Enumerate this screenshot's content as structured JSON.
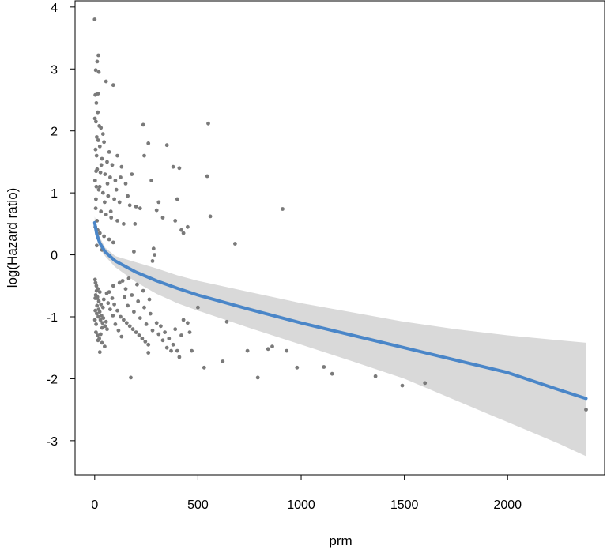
{
  "chart_data": {
    "type": "scatter",
    "title": "",
    "xlabel": "prm",
    "ylabel": "log(Hazard ratio)",
    "xlim": [
      -95,
      2470
    ],
    "ylim": [
      -3.55,
      4.1
    ],
    "xticks": [
      0,
      500,
      1000,
      1500,
      2000
    ],
    "yticks": [
      -3,
      -2,
      -1,
      0,
      1,
      2,
      3,
      4
    ],
    "grid": false,
    "colors": {
      "points": "#7a7a7a",
      "fit_line": "#4a86c8",
      "confidence_band": "#d9d9d9"
    },
    "fit_line": {
      "x": [
        0,
        10,
        25,
        50,
        100,
        200,
        300,
        400,
        500,
        750,
        1000,
        1250,
        1500,
        1750,
        2000,
        2250,
        2380
      ],
      "y": [
        0.52,
        0.33,
        0.19,
        0.05,
        -0.1,
        -0.28,
        -0.42,
        -0.54,
        -0.65,
        -0.88,
        -1.1,
        -1.3,
        -1.5,
        -1.7,
        -1.9,
        -2.18,
        -2.32
      ]
    },
    "confidence_band": {
      "x": [
        0,
        25,
        50,
        100,
        200,
        300,
        400,
        500,
        750,
        1000,
        1250,
        1500,
        1750,
        2000,
        2250,
        2380
      ],
      "upper": [
        0.62,
        0.28,
        0.12,
        -0.02,
        -0.12,
        -0.22,
        -0.33,
        -0.42,
        -0.6,
        -0.78,
        -0.93,
        -1.08,
        -1.2,
        -1.3,
        -1.38,
        -1.42
      ],
      "lower": [
        0.42,
        0.1,
        -0.02,
        -0.2,
        -0.44,
        -0.63,
        -0.78,
        -0.9,
        -1.18,
        -1.45,
        -1.72,
        -2.0,
        -2.35,
        -2.7,
        -3.05,
        -3.25
      ]
    },
    "points": [
      [
        0,
        3.8
      ],
      [
        18,
        3.22
      ],
      [
        12,
        3.12
      ],
      [
        5,
        2.98
      ],
      [
        20,
        2.95
      ],
      [
        55,
        2.8
      ],
      [
        90,
        2.74
      ],
      [
        3,
        2.58
      ],
      [
        8,
        2.45
      ],
      [
        15,
        2.3
      ],
      [
        6,
        2.15
      ],
      [
        22,
        2.08
      ],
      [
        30,
        2.05
      ],
      [
        40,
        1.95
      ],
      [
        10,
        1.9
      ],
      [
        45,
        1.82
      ],
      [
        25,
        1.75
      ],
      [
        4,
        1.7
      ],
      [
        70,
        1.66
      ],
      [
        110,
        1.6
      ],
      [
        35,
        1.55
      ],
      [
        60,
        1.5
      ],
      [
        85,
        1.45
      ],
      [
        130,
        1.42
      ],
      [
        12,
        1.38
      ],
      [
        28,
        1.33
      ],
      [
        50,
        1.3
      ],
      [
        75,
        1.25
      ],
      [
        100,
        1.2
      ],
      [
        150,
        1.15
      ],
      [
        8,
        1.1
      ],
      [
        20,
        1.05
      ],
      [
        40,
        1.0
      ],
      [
        65,
        0.95
      ],
      [
        95,
        0.9
      ],
      [
        120,
        0.85
      ],
      [
        170,
        0.8
      ],
      [
        200,
        0.78
      ],
      [
        5,
        0.75
      ],
      [
        30,
        0.7
      ],
      [
        55,
        0.65
      ],
      [
        80,
        0.6
      ],
      [
        110,
        0.55
      ],
      [
        140,
        0.5
      ],
      [
        3,
        0.45
      ],
      [
        14,
        0.4
      ],
      [
        25,
        0.35
      ],
      [
        45,
        0.3
      ],
      [
        70,
        0.25
      ],
      [
        90,
        0.2
      ],
      [
        10,
        0.15
      ],
      [
        35,
        0.08
      ],
      [
        2,
        1.2
      ],
      [
        6,
        0.9
      ],
      [
        9,
        1.6
      ],
      [
        16,
        2.6
      ],
      [
        1,
        2.2
      ],
      [
        7,
        1.35
      ],
      [
        11,
        0.55
      ],
      [
        17,
        1.85
      ],
      [
        24,
        1.1
      ],
      [
        32,
        1.45
      ],
      [
        48,
        0.85
      ],
      [
        62,
        1.15
      ],
      [
        78,
        0.7
      ],
      [
        105,
        1.05
      ],
      [
        125,
        1.25
      ],
      [
        160,
        0.95
      ],
      [
        180,
        1.3
      ],
      [
        220,
        0.75
      ],
      [
        235,
        2.1
      ],
      [
        260,
        1.8
      ],
      [
        300,
        0.72
      ],
      [
        310,
        0.85
      ],
      [
        330,
        0.6
      ],
      [
        350,
        1.77
      ],
      [
        380,
        1.42
      ],
      [
        400,
        0.9
      ],
      [
        410,
        1.4
      ],
      [
        420,
        0.4
      ],
      [
        430,
        0.35
      ],
      [
        240,
        1.6
      ],
      [
        275,
        1.2
      ],
      [
        195,
        0.5
      ],
      [
        285,
        0.1
      ],
      [
        290,
        0.0
      ],
      [
        390,
        0.55
      ],
      [
        450,
        0.45
      ],
      [
        550,
        2.12
      ],
      [
        545,
        1.27
      ],
      [
        560,
        0.62
      ],
      [
        680,
        0.18
      ],
      [
        910,
        0.74
      ],
      [
        190,
        0.05
      ],
      [
        280,
        -0.1
      ],
      [
        2,
        -0.4
      ],
      [
        8,
        -0.5
      ],
      [
        15,
        -0.55
      ],
      [
        25,
        -0.6
      ],
      [
        5,
        -0.65
      ],
      [
        12,
        -0.7
      ],
      [
        20,
        -0.75
      ],
      [
        30,
        -0.8
      ],
      [
        40,
        -0.85
      ],
      [
        3,
        -0.9
      ],
      [
        10,
        -0.95
      ],
      [
        18,
        -1.0
      ],
      [
        28,
        -1.05
      ],
      [
        38,
        -1.1
      ],
      [
        50,
        -1.15
      ],
      [
        60,
        -1.2
      ],
      [
        6,
        -1.25
      ],
      [
        14,
        -1.3
      ],
      [
        22,
        -1.35
      ],
      [
        35,
        -1.42
      ],
      [
        48,
        -1.48
      ],
      [
        25,
        -1.57
      ],
      [
        70,
        -0.6
      ],
      [
        85,
        -0.7
      ],
      [
        95,
        -0.8
      ],
      [
        110,
        -0.9
      ],
      [
        125,
        -1.0
      ],
      [
        140,
        -1.05
      ],
      [
        155,
        -1.1
      ],
      [
        170,
        -1.15
      ],
      [
        185,
        -1.2
      ],
      [
        200,
        -1.25
      ],
      [
        215,
        -1.3
      ],
      [
        230,
        -1.35
      ],
      [
        245,
        -1.4
      ],
      [
        260,
        -1.45
      ],
      [
        120,
        -0.45
      ],
      [
        150,
        -0.55
      ],
      [
        180,
        -0.65
      ],
      [
        210,
        -0.75
      ],
      [
        240,
        -0.85
      ],
      [
        270,
        -0.95
      ],
      [
        300,
        -1.1
      ],
      [
        320,
        -1.15
      ],
      [
        340,
        -1.25
      ],
      [
        360,
        -1.35
      ],
      [
        380,
        -1.45
      ],
      [
        400,
        -1.55
      ],
      [
        410,
        -1.65
      ],
      [
        390,
        -1.2
      ],
      [
        420,
        -1.3
      ],
      [
        430,
        -1.05
      ],
      [
        450,
        -1.1
      ],
      [
        260,
        -1.58
      ],
      [
        175,
        -1.98
      ],
      [
        500,
        -0.85
      ],
      [
        530,
        -1.82
      ],
      [
        460,
        -1.25
      ],
      [
        470,
        -1.55
      ],
      [
        620,
        -1.72
      ],
      [
        640,
        -1.08
      ],
      [
        740,
        -1.55
      ],
      [
        790,
        -1.98
      ],
      [
        840,
        -1.52
      ],
      [
        860,
        -1.48
      ],
      [
        930,
        -1.55
      ],
      [
        980,
        -1.82
      ],
      [
        1110,
        -1.81
      ],
      [
        1150,
        -1.92
      ],
      [
        1360,
        -1.96
      ],
      [
        1490,
        -2.11
      ],
      [
        1600,
        -2.07
      ],
      [
        2380,
        -2.5
      ],
      [
        4,
        -0.45
      ],
      [
        9,
        -0.58
      ],
      [
        13,
        -0.68
      ],
      [
        19,
        -0.88
      ],
      [
        24,
        -0.92
      ],
      [
        33,
        -0.98
      ],
      [
        42,
        -1.02
      ],
      [
        55,
        -1.08
      ],
      [
        65,
        -0.78
      ],
      [
        75,
        -0.88
      ],
      [
        88,
        -0.98
      ],
      [
        100,
        -1.12
      ],
      [
        115,
        -1.22
      ],
      [
        130,
        -1.32
      ],
      [
        145,
        -0.68
      ],
      [
        160,
        -0.82
      ],
      [
        190,
        -0.92
      ],
      [
        220,
        -1.02
      ],
      [
        250,
        -1.12
      ],
      [
        280,
        -1.22
      ],
      [
        310,
        -1.28
      ],
      [
        330,
        -1.38
      ],
      [
        350,
        -1.5
      ],
      [
        370,
        -1.55
      ],
      [
        205,
        -0.48
      ],
      [
        235,
        -0.58
      ],
      [
        265,
        -0.72
      ],
      [
        165,
        -0.38
      ],
      [
        135,
        -0.42
      ],
      [
        90,
        -0.5
      ],
      [
        58,
        -0.62
      ],
      [
        44,
        -0.72
      ],
      [
        36,
        -1.18
      ],
      [
        29,
        -1.28
      ],
      [
        16,
        -1.38
      ],
      [
        7,
        -1.12
      ],
      [
        1,
        -1.05
      ],
      [
        11,
        -0.82
      ],
      [
        3,
        -0.7
      ]
    ]
  }
}
